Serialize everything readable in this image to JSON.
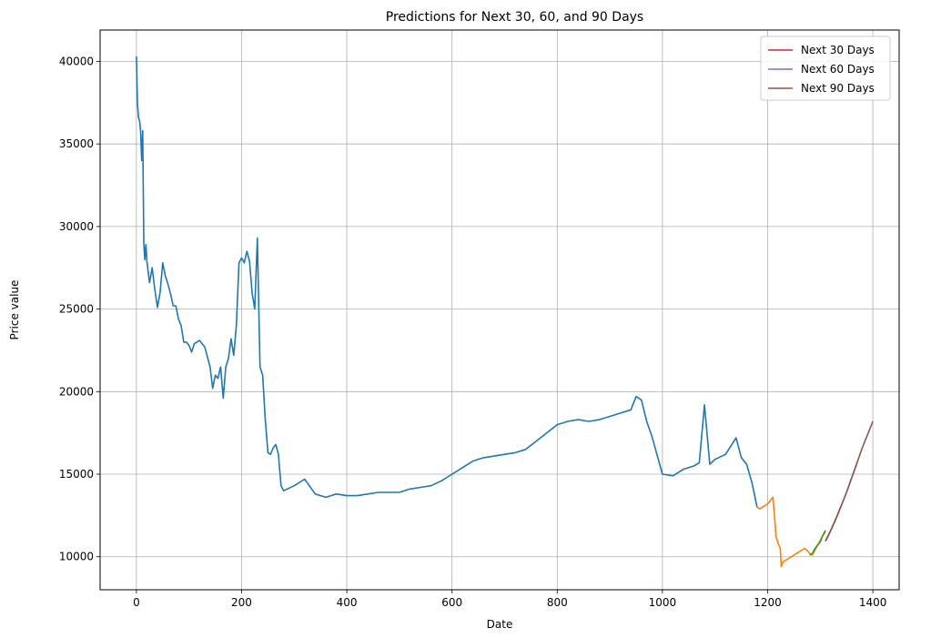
{
  "chart_data": {
    "type": "line",
    "title": "Predictions for Next 30, 60, and 90 Days",
    "xlabel": "Date",
    "ylabel": "Price value",
    "xlim": [
      -69,
      1450
    ],
    "ylim": [
      8000,
      41900
    ],
    "xticks": [
      0,
      200,
      400,
      600,
      800,
      1000,
      1200,
      1400
    ],
    "yticks": [
      10000,
      15000,
      20000,
      25000,
      30000,
      35000,
      40000
    ],
    "grid": true,
    "legend_position": "top-right",
    "legend": [
      "Next 30 Days",
      "Next 60 Days",
      "Next 90 Days"
    ],
    "series": [
      {
        "color": "#1f77b4",
        "x": [
          0,
          2,
          4,
          6,
          8,
          10,
          12,
          14,
          16,
          18,
          20,
          25,
          30,
          35,
          40,
          45,
          50,
          55,
          60,
          65,
          70,
          75,
          80,
          85,
          90,
          95,
          100,
          105,
          110,
          120,
          130,
          140,
          145,
          150,
          155,
          160,
          165,
          170,
          175,
          180,
          185,
          190,
          195,
          200,
          205,
          210,
          215,
          220,
          225,
          230,
          235,
          240,
          245,
          250,
          255,
          260,
          265,
          270,
          275,
          280,
          300,
          320,
          340,
          360,
          380,
          400,
          420,
          440,
          460,
          480,
          500,
          520,
          540,
          560,
          580,
          600,
          620,
          640,
          660,
          680,
          700,
          720,
          740,
          760,
          780,
          800,
          820,
          840,
          860,
          880,
          900,
          920,
          940,
          950,
          960,
          970,
          980,
          1000,
          1020,
          1040,
          1060,
          1070,
          1080,
          1090,
          1100,
          1120,
          1140,
          1150,
          1160,
          1170,
          1180
        ],
        "y": [
          40300,
          37500,
          36600,
          36400,
          35800,
          34000,
          35800,
          29000,
          28000,
          28900,
          27900,
          26600,
          27500,
          26200,
          25100,
          26000,
          27800,
          27000,
          26500,
          25900,
          25200,
          25200,
          24400,
          24000,
          23000,
          23000,
          22800,
          22400,
          22900,
          23100,
          22700,
          21500,
          20200,
          21000,
          20800,
          21500,
          19600,
          21500,
          22000,
          23200,
          22200,
          24000,
          27800,
          28100,
          27800,
          28500,
          27900,
          26000,
          25000,
          29300,
          21500,
          21000,
          18300,
          16300,
          16200,
          16600,
          16800,
          16200,
          14300,
          14000,
          14300,
          14700,
          13800,
          13600,
          13800,
          13700,
          13700,
          13800,
          13900,
          13900,
          13900,
          14100,
          14200,
          14300,
          14600,
          15000,
          15400,
          15800,
          16000,
          16100,
          16200,
          16300,
          16500,
          17000,
          17500,
          18000,
          18200,
          18300,
          18200,
          18300,
          18500,
          18700,
          18900,
          19700,
          19500,
          18200,
          17300,
          15000,
          14900,
          15300,
          15500,
          15700,
          19200,
          15600,
          15900,
          16200,
          17200,
          16000,
          15600,
          14500,
          13000
        ]
      },
      {
        "color": "#ff7f0e",
        "x": [
          1180,
          1185,
          1190,
          1195,
          1200,
          1205,
          1210,
          1213,
          1216,
          1220,
          1224,
          1226,
          1228,
          1230,
          1235,
          1240,
          1245,
          1250,
          1255,
          1260,
          1265,
          1270,
          1275,
          1280,
          1285,
          1290,
          1295,
          1300,
          1305,
          1310
        ],
        "y": [
          13000,
          12900,
          13000,
          13100,
          13200,
          13400,
          13600,
          12500,
          11200,
          10800,
          10500,
          9400,
          9600,
          9700,
          9800,
          9900,
          10000,
          10100,
          10200,
          10300,
          10400,
          10500,
          10400,
          10200,
          10100,
          10400,
          10700,
          11000,
          11300,
          11500
        ]
      },
      {
        "color": "#2ca02c",
        "x": [
          1280,
          1285,
          1290,
          1295,
          1300,
          1305,
          1310
        ],
        "y": [
          10100,
          10200,
          10500,
          10700,
          10900,
          11300,
          11600
        ]
      },
      {
        "name": "Next 30 Days",
        "color": "#d62728",
        "x": [
          1310,
          1315,
          1320,
          1325,
          1330,
          1335,
          1340
        ],
        "y": [
          10950,
          11250,
          11600,
          11950,
          12300,
          12700,
          13100
        ]
      },
      {
        "name": "Next 60 Days",
        "color": "#9467bd",
        "x": [
          1310,
          1320,
          1330,
          1340,
          1350,
          1360,
          1370
        ],
        "y": [
          10950,
          11600,
          12300,
          13100,
          13900,
          14800,
          15700
        ]
      },
      {
        "name": "Next 90 Days",
        "color": "#8c564b",
        "x": [
          1310,
          1320,
          1330,
          1340,
          1350,
          1360,
          1370,
          1380,
          1390,
          1400
        ],
        "y": [
          10950,
          11600,
          12300,
          13100,
          13900,
          14800,
          15700,
          16600,
          17400,
          18200
        ]
      }
    ]
  }
}
